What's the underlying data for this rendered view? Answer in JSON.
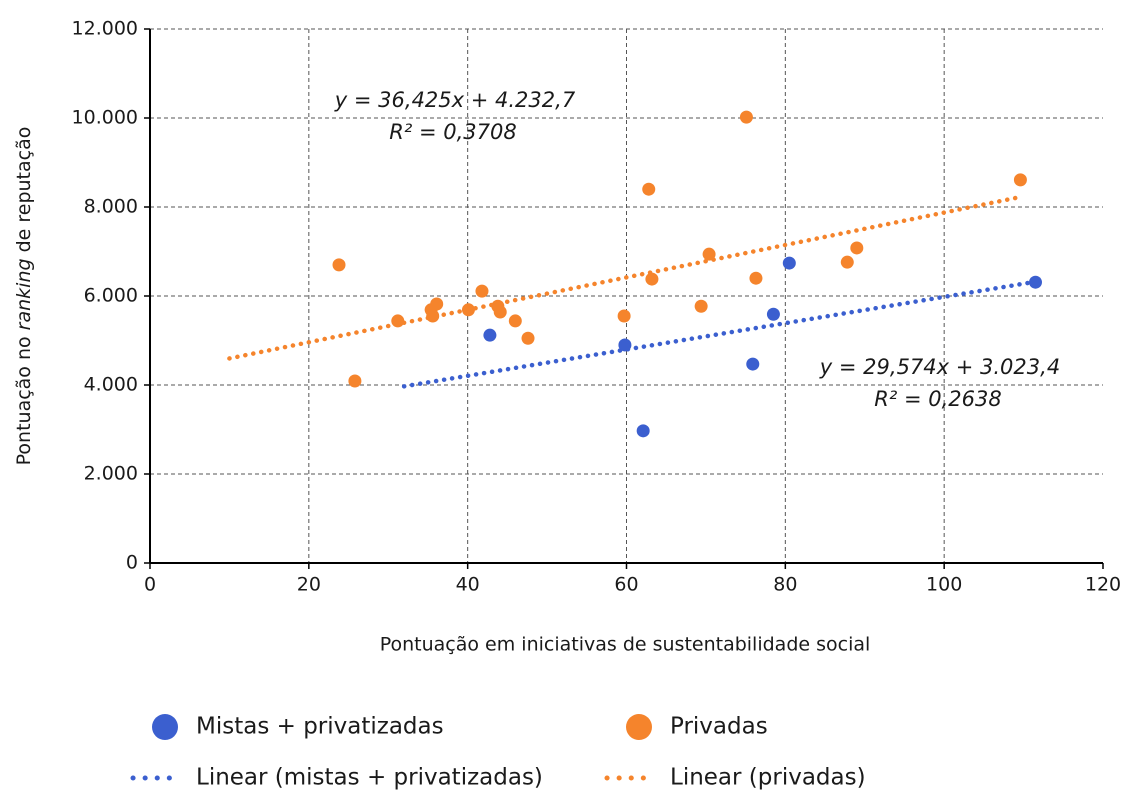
{
  "chart_data": {
    "type": "scatter",
    "x_label": "Pontuação em iniciativas de sustentabilidade social",
    "y_label": [
      "Pontuação no ",
      "ranking",
      " de reputação"
    ],
    "xlim": [
      0,
      120
    ],
    "xticks": [
      0,
      20,
      40,
      60,
      80,
      100,
      120
    ],
    "ylim": [
      0,
      12000
    ],
    "yticks": [
      0,
      {
        "value": 2000,
        "label": "2.000"
      },
      {
        "value": 4000,
        "label": "4.000"
      },
      {
        "value": 6000,
        "label": "6.000"
      },
      {
        "value": 8000,
        "label": "8.000"
      },
      {
        "value": 10000,
        "label": "10.000"
      },
      {
        "value": 12000,
        "label": "12.000"
      }
    ],
    "grid": true,
    "series": [
      {
        "name": "Mistas + privatizadas",
        "color": "#3b5fcf",
        "x": [
          42.8,
          59.8,
          62.1,
          75.9,
          78.5,
          80.5,
          111.5
        ],
        "values": [
          5120,
          4900,
          2970,
          4470,
          5590,
          6740,
          6310
        ]
      },
      {
        "name": "Privadas",
        "color": "#f5842c",
        "x": [
          23.8,
          25.8,
          31.2,
          35.4,
          35.6,
          36.1,
          40.1,
          41.8,
          43.8,
          44.1,
          46.0,
          47.6,
          59.7,
          62.8,
          63.2,
          69.4,
          70.4,
          75.1,
          76.3,
          87.8,
          89.0,
          109.6
        ],
        "values": [
          6700,
          4090,
          5440,
          5690,
          5550,
          5820,
          5690,
          6110,
          5770,
          5640,
          5440,
          5050,
          5550,
          8400,
          6380,
          5770,
          6940,
          10020,
          6400,
          6760,
          7080,
          8610
        ]
      }
    ],
    "trendlines": [
      {
        "name": "Linear (mistas + privatizadas)",
        "color": "#3b5fcf",
        "x": [
          32,
          111
        ],
        "values": [
          3970,
          6306
        ]
      },
      {
        "name": "Linear (privadas)",
        "color": "#f5842c",
        "x": [
          10,
          109.5
        ],
        "values": [
          4597,
          8221
        ]
      }
    ],
    "annotations": [
      {
        "lines": [
          "y = 36,425x + 4.232,7",
          "R² = 0,3708"
        ]
      },
      {
        "lines": [
          "y = 29,574x + 3.023,4",
          "R² = 0,2638"
        ]
      }
    ]
  }
}
